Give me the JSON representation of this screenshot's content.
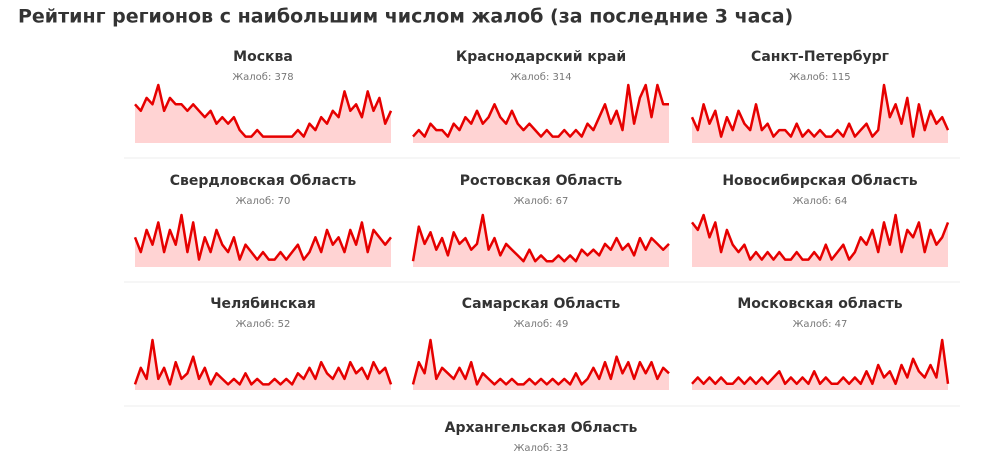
{
  "title": "Рейтинг регионов с наибольшим числом жалоб (за последние 3 часа)",
  "regions": [
    {
      "name": "Москва",
      "complaints": "Жалоб: 378",
      "sparkline": [
        6,
        5,
        7,
        6,
        9,
        5,
        7,
        6,
        6,
        5,
        6,
        5,
        4,
        5,
        3,
        4,
        3,
        4,
        2,
        1,
        1,
        2,
        1,
        1,
        1,
        1,
        1,
        1,
        2,
        1,
        3,
        2,
        4,
        3,
        5,
        4,
        8,
        5,
        6,
        4,
        8,
        5,
        7,
        3,
        5
      ]
    },
    {
      "name": "Краснодарский край",
      "complaints": "Жалоб: 314",
      "sparkline": [
        1,
        2,
        1,
        3,
        2,
        2,
        1,
        3,
        2,
        4,
        3,
        5,
        3,
        4,
        6,
        4,
        3,
        5,
        3,
        2,
        3,
        2,
        1,
        2,
        1,
        1,
        2,
        1,
        2,
        1,
        3,
        2,
        4,
        6,
        3,
        5,
        2,
        9,
        3,
        7,
        9,
        4,
        9,
        6,
        6
      ]
    },
    {
      "name": "Санкт-Петербург",
      "complaints": "Жалоб: 115",
      "sparkline": [
        4,
        2,
        6,
        3,
        5,
        1,
        4,
        2,
        5,
        3,
        2,
        6,
        2,
        3,
        1,
        2,
        2,
        1,
        3,
        1,
        2,
        1,
        2,
        1,
        1,
        2,
        1,
        3,
        1,
        2,
        3,
        1,
        2,
        9,
        4,
        6,
        3,
        7,
        1,
        6,
        2,
        5,
        3,
        4,
        2
      ]
    },
    {
      "name": "Свердловская Область",
      "complaints": "Жалоб: 70",
      "sparkline": [
        4,
        2,
        5,
        3,
        6,
        2,
        5,
        3,
        7,
        2,
        6,
        1,
        4,
        2,
        5,
        3,
        2,
        4,
        1,
        3,
        2,
        1,
        2,
        1,
        1,
        2,
        1,
        2,
        3,
        1,
        2,
        4,
        2,
        5,
        3,
        4,
        2,
        5,
        3,
        6,
        2,
        5,
        4,
        3,
        4
      ]
    },
    {
      "name": "Ростовская Область",
      "complaints": "Жалоб: 67",
      "sparkline": [
        1,
        7,
        4,
        6,
        3,
        5,
        2,
        6,
        4,
        5,
        3,
        4,
        9,
        3,
        5,
        2,
        4,
        3,
        2,
        1,
        3,
        1,
        2,
        1,
        1,
        2,
        1,
        2,
        1,
        3,
        2,
        3,
        2,
        4,
        3,
        5,
        3,
        4,
        2,
        5,
        3,
        5,
        4,
        3,
        4
      ]
    },
    {
      "name": "Новосибирская Область",
      "complaints": "Жалоб: 64",
      "sparkline": [
        6,
        5,
        7,
        4,
        6,
        2,
        5,
        3,
        2,
        3,
        1,
        2,
        1,
        2,
        1,
        2,
        1,
        1,
        2,
        1,
        1,
        2,
        1,
        3,
        1,
        2,
        3,
        1,
        2,
        4,
        3,
        5,
        2,
        6,
        3,
        7,
        2,
        5,
        4,
        6,
        2,
        5,
        3,
        4,
        6
      ]
    },
    {
      "name": "Челябинская",
      "complaints": "Жалоб: 52",
      "sparkline": [
        1,
        4,
        2,
        9,
        2,
        4,
        1,
        5,
        2,
        3,
        6,
        2,
        4,
        1,
        3,
        2,
        1,
        2,
        1,
        3,
        1,
        2,
        1,
        1,
        2,
        1,
        2,
        1,
        3,
        2,
        4,
        2,
        5,
        3,
        2,
        4,
        2,
        5,
        3,
        4,
        2,
        5,
        3,
        4,
        1
      ]
    },
    {
      "name": "Самарская Область",
      "complaints": "Жалоб: 49",
      "sparkline": [
        1,
        5,
        3,
        9,
        2,
        4,
        3,
        2,
        4,
        2,
        5,
        1,
        3,
        2,
        1,
        2,
        1,
        2,
        1,
        1,
        2,
        1,
        2,
        1,
        2,
        1,
        2,
        1,
        3,
        1,
        2,
        4,
        2,
        5,
        2,
        6,
        3,
        5,
        2,
        5,
        3,
        5,
        2,
        4,
        3
      ]
    },
    {
      "name": "Московская область",
      "complaints": "Жалоб: 47",
      "sparkline": [
        1,
        2,
        1,
        2,
        1,
        2,
        1,
        1,
        2,
        1,
        2,
        1,
        2,
        1,
        2,
        3,
        1,
        2,
        1,
        2,
        1,
        3,
        1,
        2,
        1,
        1,
        2,
        1,
        2,
        1,
        3,
        1,
        4,
        2,
        3,
        1,
        4,
        2,
        5,
        3,
        2,
        4,
        2,
        8,
        1
      ]
    },
    {
      "name": "Архангельская Область",
      "complaints": "Жалоб: 33"
    }
  ]
}
